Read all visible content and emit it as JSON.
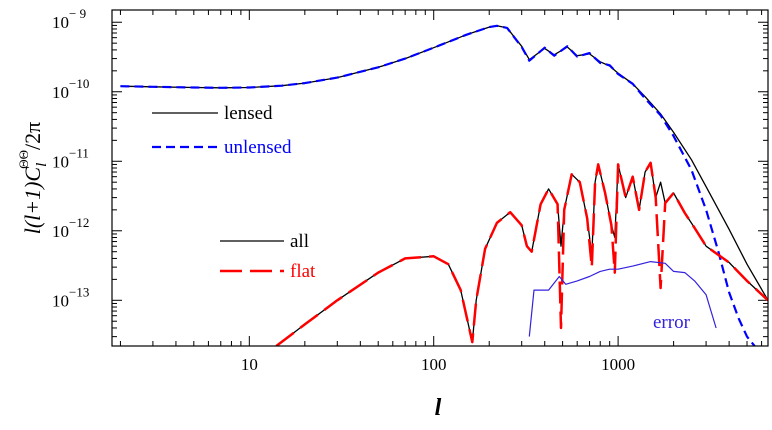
{
  "chart_data": {
    "type": "line",
    "xlabel": "l",
    "ylabel": "l(l+1)C",
    "ylabel_sub": "l",
    "ylabel_sup": "ΘΘ",
    "ylabel_tail": "/2π",
    "xscale": "log",
    "yscale": "log",
    "xlim": [
      1.8,
      6500
    ],
    "ylim": [
      2.2e-14,
      1.5e-09
    ],
    "x_tick_labels": [
      "10",
      "100",
      "1000"
    ],
    "y_tick_labels": [
      {
        "base": "10",
        "exp": "− 9"
      },
      {
        "base": "10",
        "exp": "−10"
      },
      {
        "base": "10",
        "exp": "−11"
      },
      {
        "base": "10",
        "exp": "−12"
      },
      {
        "base": "10",
        "exp": "−13"
      }
    ],
    "legends": [
      {
        "entries": [
          {
            "label": "lensed",
            "color": "#000000",
            "style": "solid"
          },
          {
            "label": "unlensed",
            "color": "#0000ff",
            "style": "dashed"
          }
        ]
      },
      {
        "entries": [
          {
            "label": "all",
            "color": "#000000",
            "style": "solid"
          },
          {
            "label": "flat",
            "color": "#ff0000",
            "style": "long-dashed"
          }
        ]
      }
    ],
    "annotations": [
      {
        "text": "error",
        "color": "#3322dd"
      }
    ],
    "series": [
      {
        "name": "lensed",
        "color": "#000000",
        "style": "solid",
        "x": [
          2,
          3,
          5,
          7,
          10,
          15,
          20,
          30,
          50,
          70,
          100,
          150,
          200,
          220,
          250,
          300,
          330,
          400,
          450,
          530,
          600,
          700,
          800,
          900,
          1000,
          1200,
          1400,
          1700,
          2000,
          2500,
          3000,
          4000,
          5000,
          6500
        ],
        "y": [
          1.2e-10,
          1.18e-10,
          1.15e-10,
          1.14e-10,
          1.15e-10,
          1.22e-10,
          1.33e-10,
          1.6e-10,
          2.25e-10,
          3e-10,
          4.3e-10,
          6.6e-10,
          8.5e-10,
          8.9e-10,
          8.3e-10,
          4.5e-10,
          2.9e-10,
          4.2e-10,
          3.4e-10,
          4.4e-10,
          3.3e-10,
          3.5e-10,
          2.7e-10,
          2.35e-10,
          1.85e-10,
          1.3e-10,
          8.5e-11,
          4.8e-11,
          2.6e-11,
          1.05e-11,
          4.3e-12,
          1.05e-12,
          3.3e-13,
          1e-13
        ]
      },
      {
        "name": "unlensed",
        "color": "#0000ff",
        "style": "dashed",
        "x": [
          2,
          3,
          5,
          7,
          10,
          15,
          20,
          30,
          50,
          70,
          100,
          150,
          200,
          220,
          250,
          300,
          330,
          400,
          450,
          530,
          600,
          700,
          800,
          900,
          1000,
          1200,
          1400,
          1700,
          2000,
          2500,
          3000,
          3500,
          4000,
          4500,
          5000,
          5500
        ],
        "y": [
          1.2e-10,
          1.18e-10,
          1.15e-10,
          1.14e-10,
          1.15e-10,
          1.22e-10,
          1.33e-10,
          1.6e-10,
          2.25e-10,
          3e-10,
          4.3e-10,
          6.6e-10,
          8.5e-10,
          8.9e-10,
          8.3e-10,
          4.4e-10,
          2.8e-10,
          4.3e-10,
          3.3e-10,
          4.5e-10,
          3.2e-10,
          3.6e-10,
          2.6e-10,
          2.4e-10,
          1.8e-10,
          1.3e-10,
          8e-11,
          4.6e-11,
          2.3e-11,
          7.5e-12,
          2e-12,
          5e-13,
          1.3e-13,
          5.5e-14,
          3e-14,
          2.2e-14
        ]
      },
      {
        "name": "all",
        "color": "#000000",
        "style": "solid",
        "x": [
          14,
          20,
          30,
          50,
          70,
          100,
          120,
          140,
          155,
          162,
          170,
          190,
          220,
          260,
          300,
          320,
          340,
          380,
          420,
          470,
          490,
          510,
          560,
          620,
          680,
          720,
          750,
          780,
          850,
          920,
          960,
          1000,
          1100,
          1200,
          1300,
          1400,
          1500,
          1600,
          1700,
          1800,
          2000,
          2300,
          2600,
          3000,
          4000,
          5000,
          6500
        ],
        "y": [
          2.2e-14,
          4.5e-14,
          1e-13,
          2.5e-13,
          4e-13,
          4.3e-13,
          3.3e-13,
          1.4e-13,
          4.2e-14,
          2.5e-14,
          1e-13,
          5.5e-13,
          1.3e-12,
          1.85e-12,
          1.2e-12,
          6e-13,
          5e-13,
          2.4e-12,
          4e-12,
          2.4e-12,
          6e-13,
          2e-12,
          6.5e-12,
          5e-12,
          1.5e-12,
          4.5e-13,
          5e-12,
          9e-12,
          3.5e-12,
          1.2e-12,
          8e-13,
          9e-12,
          3e-12,
          6e-12,
          2e-12,
          7e-12,
          9.5e-12,
          3e-12,
          5e-12,
          2.5e-12,
          3.5e-12,
          1.8e-12,
          1.1e-12,
          6e-13,
          3.5e-13,
          1.9e-13,
          1e-13
        ]
      },
      {
        "name": "flat",
        "color": "#ff0000",
        "style": "long-dashed",
        "x": [
          14,
          20,
          30,
          50,
          70,
          100,
          120,
          140,
          155,
          162,
          170,
          190,
          220,
          260,
          300,
          320,
          340,
          380,
          420,
          470,
          490,
          510,
          560,
          620,
          680,
          720,
          750,
          780,
          850,
          920,
          960,
          1000,
          1100,
          1200,
          1300,
          1400,
          1500,
          1600,
          1700,
          1800,
          2000,
          2300,
          2600,
          3000,
          4000,
          5000,
          6500
        ],
        "y": [
          2.2e-14,
          4.5e-14,
          1e-13,
          2.5e-13,
          4e-13,
          4.3e-13,
          3.3e-13,
          1.4e-13,
          4.2e-14,
          2.5e-14,
          1e-13,
          5.5e-13,
          1.3e-12,
          1.85e-12,
          1.2e-12,
          6e-13,
          5e-13,
          2.4e-12,
          4e-12,
          2.4e-12,
          4e-14,
          2e-12,
          6.5e-12,
          5e-12,
          1.5e-12,
          3e-13,
          5e-12,
          9e-12,
          3.5e-12,
          1.2e-12,
          2.5e-13,
          9e-12,
          3e-12,
          6e-12,
          2e-12,
          7e-12,
          9.5e-12,
          3e-12,
          1.5e-13,
          2.5e-12,
          3.5e-12,
          1.8e-12,
          1.1e-12,
          6e-13,
          3.5e-13,
          1.9e-13,
          1e-13
        ]
      },
      {
        "name": "error",
        "color": "#3322dd",
        "style": "solid",
        "x": [
          330,
          350,
          380,
          420,
          480,
          520,
          600,
          700,
          800,
          900,
          1000,
          1200,
          1500,
          1800,
          2000,
          2300,
          2600,
          3000,
          3400
        ],
        "y": [
          3e-14,
          1.4e-13,
          1.4e-13,
          1.4e-13,
          2.2e-13,
          1.7e-13,
          1.9e-13,
          2.2e-13,
          2.6e-13,
          2.8e-13,
          2.8e-13,
          3.1e-13,
          3.6e-13,
          3.4e-13,
          2.6e-13,
          2.5e-13,
          1.9e-13,
          1.2e-13,
          4e-14
        ]
      }
    ]
  }
}
